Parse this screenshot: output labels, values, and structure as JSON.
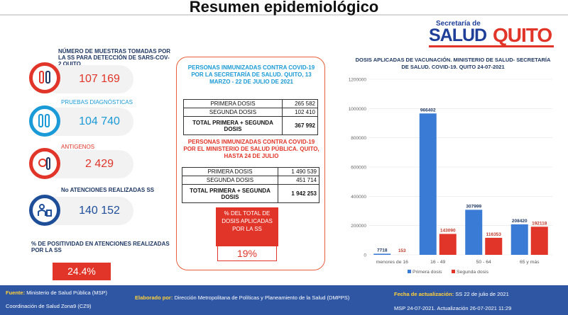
{
  "header": {
    "title": "Resumen epidemiológico"
  },
  "logo": {
    "small": "Secretaría de",
    "salud": "SALUD",
    "quito": "QUITO"
  },
  "stats": [
    {
      "label": "NÚMERO DE MUESTRAS TOMADAS POR LA SS PARA DETECCIÓN DE SARS-COV-2 QUITO",
      "value": "107 169",
      "color": "#e03528",
      "icon": "test-tubes-icon"
    },
    {
      "label": "PRUEBAS DIAGNÓSTICAS",
      "value": "104 740",
      "color": "#1a9ad6",
      "icon": "lab-tubes-icon"
    },
    {
      "label": "ANTIGENOS",
      "value": "2 429",
      "color": "#e03528",
      "icon": "virus-tube-icon"
    },
    {
      "label": "No ATENCIONES REALIZADAS SS",
      "value": "140 152",
      "color": "#1f4e99",
      "icon": "doctor-desk-icon"
    }
  ],
  "positivity": {
    "label": "% DE POSITIVIDAD EN ATENCIONES REALIZADAS POR LA SS",
    "value": "24.4%"
  },
  "immunized_ss": {
    "title": "PERSONAS INMUNIZADAS CONTRA COVID-19 POR LA SECRETARÍA DE SALUD. QUITO, 13 MARZO - 22 DE JULIO DE 2021",
    "rows": [
      {
        "label": "PRIMERA DOSIS",
        "value": "265 582"
      },
      {
        "label": "SEGUNDA DOSIS",
        "value": "102 410"
      }
    ],
    "total_label": "TOTAL PRIMERA + SEGUNDA DOSIS",
    "total_value": "367 992"
  },
  "immunized_msp": {
    "title": "PERSONAS INMUNIZADAS CONTRA COVID-19 POR EL MINISTERIO DE SALUD PÚBLICA. QUITO, HASTA 24 DE JULIO",
    "rows": [
      {
        "label": "PRIMERA DOSIS",
        "value": "1 490 539"
      },
      {
        "label": "SEGUNDA DOSIS",
        "value": "451 714"
      }
    ],
    "total_label": "TOTAL PRIMERA + SEGUNDA DOSIS",
    "total_value": "1 942 253"
  },
  "pct_total": {
    "label": "% DEL TOTAL DE DOSIS APLICADAS POR LA SS",
    "value": "19%"
  },
  "chart_data": {
    "type": "bar",
    "title": "DOSIS APLICADAS DE VACUNACIÓN. MINISTERIO DE SALUD- SECRETARÍA DE SALUD. COVID-19. QUITO 24-07-2021",
    "categories": [
      "menores de 16",
      "16 - 49",
      "50 - 64",
      "65 y más"
    ],
    "series": [
      {
        "name": "Primera dosis",
        "values": [
          7718,
          966402,
          307999,
          208420
        ],
        "labels": [
          "7718",
          "966402",
          "307999",
          "208420"
        ],
        "color": "#3a7bd5"
      },
      {
        "name": "Segunda dosis",
        "values": [
          153,
          143090,
          116353,
          192118
        ],
        "labels": [
          "153",
          "143090",
          "116353",
          "192118"
        ],
        "color": "#e03528"
      }
    ],
    "ylim": [
      0,
      1200000
    ],
    "yticks": [
      "0",
      "200000",
      "400000",
      "600000",
      "800000",
      "1000000",
      "1200000"
    ],
    "legend": "bottom",
    "grid": true
  },
  "footer": {
    "source_key": "Fuente:",
    "source_val": "Ministerio de Salud Pública (MSP)",
    "source2": "Coordinación de Salud Zona9 (CZ9)",
    "elab_key": "Elaborado por:",
    "elab_val": "Dirección Metropolitana de Políticas y Planeamiento de la Salud (DMPPS)",
    "update_key": "Fecha de actualización:",
    "update_val": "SS 22 de julio de 2021",
    "update2": "MSP 24-07-2021. Actualización 26-07-2021 11:29"
  }
}
